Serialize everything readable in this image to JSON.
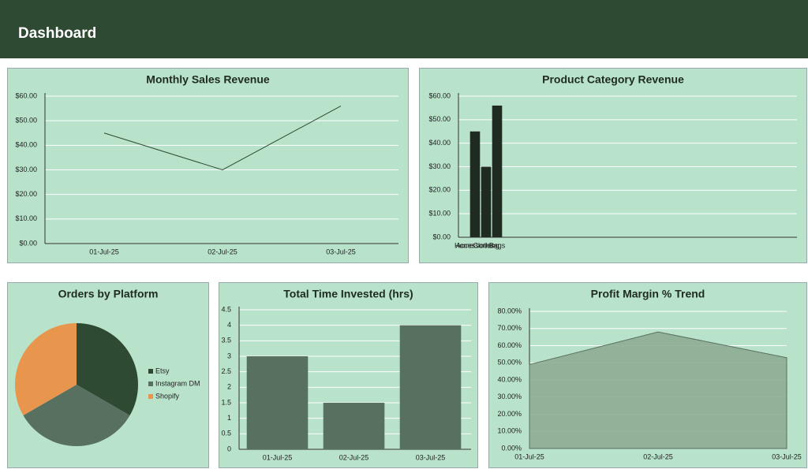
{
  "header": {
    "title": "Dashboard"
  },
  "chart_data": [
    {
      "type": "line",
      "title": "Monthly Sales Revenue",
      "categories": [
        "01-Jul-25",
        "02-Jul-25",
        "03-Jul-25"
      ],
      "values": [
        45,
        30,
        56
      ],
      "color": "#2e4a32",
      "ylim": [
        0,
        60
      ],
      "yticks": [
        {
          "value": 0,
          "label": "$0.00"
        },
        {
          "value": 10,
          "label": "$10.00"
        },
        {
          "value": 20,
          "label": "$20.00"
        },
        {
          "value": 30,
          "label": "$30.00"
        },
        {
          "value": 40,
          "label": "$40.00"
        },
        {
          "value": 50,
          "label": "$50.00"
        },
        {
          "value": 60,
          "label": "$60.00"
        }
      ],
      "grid": true
    },
    {
      "type": "bar",
      "title": "Product Category Revenue",
      "categories": [
        "Home",
        "Accessories",
        "Clothing",
        "Bags"
      ],
      "values": [
        0,
        45,
        30,
        56
      ],
      "color": "#1f2a20",
      "ylim": [
        0,
        60
      ],
      "yticks": [
        {
          "value": 0,
          "label": "$0.00"
        },
        {
          "value": 10,
          "label": "$10.00"
        },
        {
          "value": 20,
          "label": "$20.00"
        },
        {
          "value": 30,
          "label": "$30.00"
        },
        {
          "value": 40,
          "label": "$40.00"
        },
        {
          "value": 50,
          "label": "$50.00"
        },
        {
          "value": 60,
          "label": "$60.00"
        }
      ],
      "grid": true
    },
    {
      "type": "pie",
      "title": "Orders by Platform",
      "categories": [
        "Etsy",
        "Instagram DM",
        "Shopify"
      ],
      "values": [
        1,
        1,
        1
      ],
      "colors": [
        "#2e4a32",
        "#587060",
        "#e8954e"
      ],
      "legend": "right"
    },
    {
      "type": "bar",
      "title": "Total Time Invested (hrs)",
      "categories": [
        "01-Jul-25",
        "02-Jul-25",
        "03-Jul-25"
      ],
      "values": [
        3,
        1.5,
        4
      ],
      "color": "#587060",
      "ylim": [
        0,
        4.5
      ],
      "yticks": [
        0,
        0.5,
        1,
        1.5,
        2,
        2.5,
        3,
        3.5,
        4,
        4.5
      ],
      "grid": true
    },
    {
      "type": "area",
      "title": "Profit Margin % Trend",
      "categories": [
        "01-Jul-25",
        "02-Jul-25",
        "03-Jul-25"
      ],
      "values": [
        49,
        68,
        53
      ],
      "color": "#8aa890",
      "ylim": [
        0,
        80
      ],
      "yticks": [
        {
          "value": 0,
          "label": "0.00%"
        },
        {
          "value": 10,
          "label": "10.00%"
        },
        {
          "value": 20,
          "label": "20.00%"
        },
        {
          "value": 30,
          "label": "30.00%"
        },
        {
          "value": 40,
          "label": "40.00%"
        },
        {
          "value": 50,
          "label": "50.00%"
        },
        {
          "value": 60,
          "label": "60.00%"
        },
        {
          "value": 70,
          "label": "70.00%"
        },
        {
          "value": 80,
          "label": "80.00%"
        }
      ],
      "grid": true
    }
  ]
}
